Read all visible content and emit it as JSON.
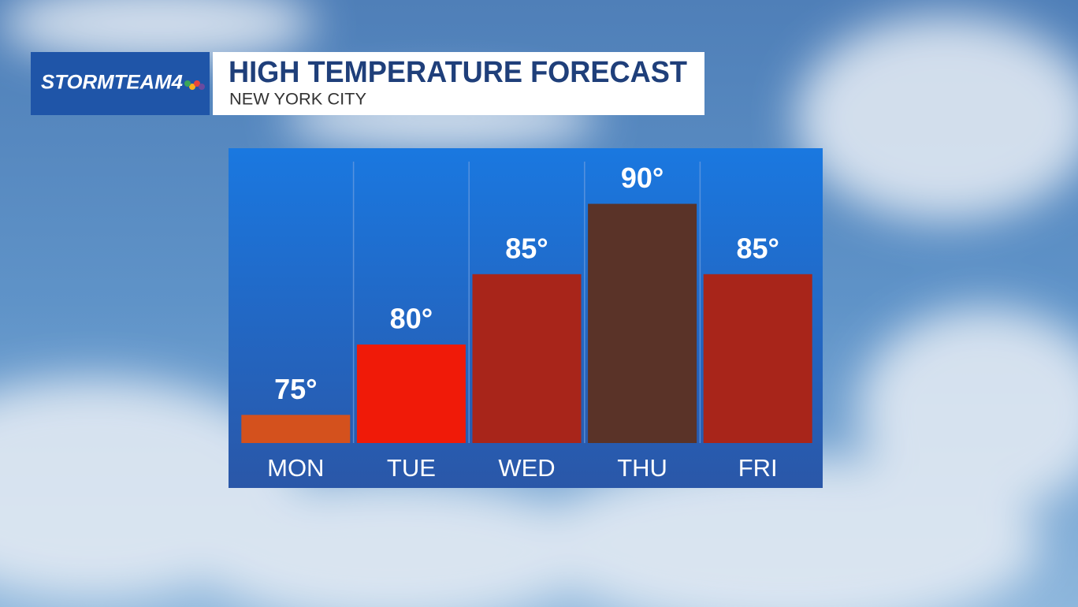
{
  "brand": "STORMTEAM4",
  "chart_data": {
    "type": "bar",
    "title": "HIGH TEMPERATURE FORECAST",
    "subtitle": "NEW YORK CITY",
    "categories": [
      "MON",
      "TUE",
      "WED",
      "THU",
      "FRI"
    ],
    "values": [
      75,
      80,
      85,
      90,
      85
    ],
    "value_labels": [
      "75°",
      "80°",
      "85°",
      "90°",
      "85°"
    ],
    "colors": [
      "#d4511d",
      "#f01a08",
      "#a8251a",
      "#5a3328",
      "#a8251a"
    ],
    "ylim": [
      73,
      93
    ]
  }
}
